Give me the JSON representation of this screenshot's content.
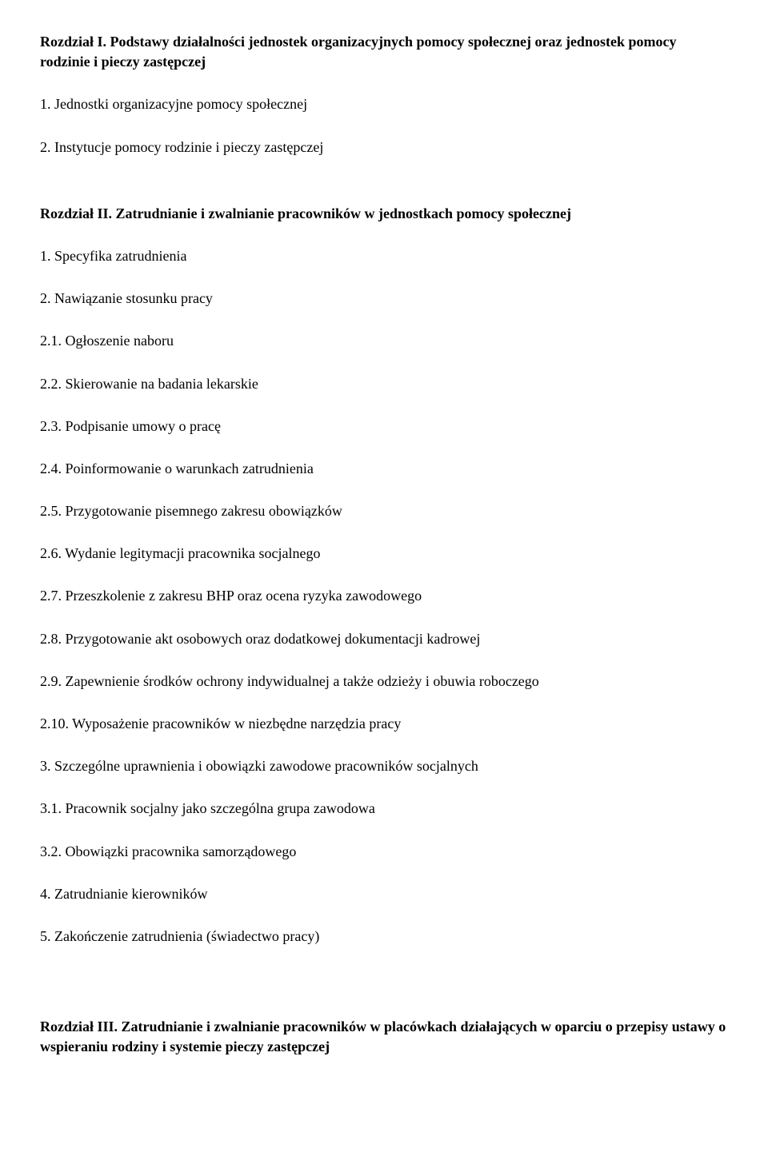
{
  "chapters": {
    "ch1": {
      "title": "Rozdział I. Podstawy działalności jednostek organizacyjnych pomocy społecznej oraz jednostek pomocy rodzinie i pieczy zastępczej",
      "items": [
        "1. Jednostki organizacyjne pomocy społecznej",
        "2. Instytucje pomocy rodzinie i pieczy zastępczej"
      ]
    },
    "ch2": {
      "title": "Rozdział II. Zatrudnianie i zwalnianie pracowników w jednostkach pomocy społecznej",
      "items": [
        "1. Specyfika zatrudnienia",
        "2. Nawiązanie stosunku pracy",
        "2.1. Ogłoszenie naboru",
        "2.2. Skierowanie na badania lekarskie",
        "2.3. Podpisanie umowy o pracę",
        "2.4. Poinformowanie o warunkach zatrudnienia",
        "2.5. Przygotowanie pisemnego zakresu obowiązków",
        "2.6. Wydanie legitymacji pracownika socjalnego",
        "2.7. Przeszkolenie z zakresu BHP oraz ocena ryzyka zawodowego",
        "2.8. Przygotowanie akt osobowych oraz dodatkowej dokumentacji kadrowej",
        "2.9. Zapewnienie środków ochrony indywidualnej a także odzieży i obuwia roboczego",
        "2.10. Wyposażenie pracowników w niezbędne narzędzia pracy",
        "3. Szczególne uprawnienia i obowiązki zawodowe pracowników socjalnych",
        "3.1. Pracownik socjalny jako szczególna grupa zawodowa",
        "3.2. Obowiązki pracownika samorządowego",
        "4. Zatrudnianie kierowników",
        "5. Zakończenie zatrudnienia (świadectwo pracy)"
      ]
    },
    "ch3": {
      "title": "Rozdział III. Zatrudnianie i zwalnianie pracowników w placówkach działających w oparciu o przepisy ustawy o wspieraniu rodziny i systemie pieczy zastępczej"
    }
  }
}
